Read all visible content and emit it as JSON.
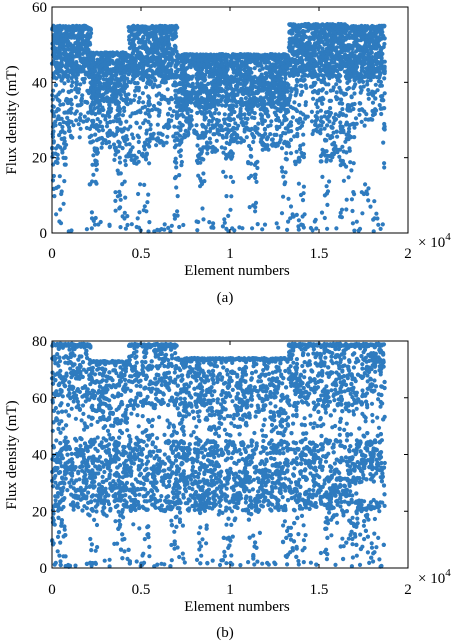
{
  "chart_data": [
    {
      "type": "scatter",
      "caption": "(a)",
      "xlabel": "Element numbers",
      "ylabel": "Flux density (mT)",
      "xlim": [
        0,
        20000
      ],
      "ylim": [
        0,
        60
      ],
      "x_exponent_label": "× 10",
      "x_exponent_power": "4",
      "xtick_values": [
        0,
        5000,
        10000,
        15000,
        20000
      ],
      "xtick_labels": [
        "0",
        "0.5",
        "1",
        "1.5",
        "2"
      ],
      "ytick_values": [
        0,
        20,
        40,
        60
      ],
      "ytick_labels": [
        "0",
        "20",
        "40",
        "60"
      ],
      "marker_color": "#2e7bbf",
      "grid": false,
      "bands": [
        {
          "x": [
            0,
            2200
          ],
          "y_top": 55
        },
        {
          "x": [
            2200,
            4300
          ],
          "y_top": 48
        },
        {
          "x": [
            4300,
            7000
          ],
          "y_top": 55
        },
        {
          "x": [
            7000,
            13300
          ],
          "y_top": 47.5
        },
        {
          "x": [
            13300,
            16500
          ],
          "y_top": 55.5
        },
        {
          "x": [
            16500,
            18700
          ],
          "y_top": 55
        }
      ],
      "gaps": [
        {
          "x": [
            800,
            2000
          ],
          "y": [
            2,
            25
          ]
        },
        {
          "x": [
            2600,
            3500
          ],
          "y": [
            3,
            22
          ]
        },
        {
          "x": [
            4500,
            4800
          ],
          "y": [
            4,
            18
          ]
        },
        {
          "x": [
            5500,
            6800
          ],
          "y": [
            3,
            23
          ]
        },
        {
          "x": [
            7300,
            8100
          ],
          "y": [
            3,
            23
          ]
        },
        {
          "x": [
            8600,
            9600
          ],
          "y": [
            4,
            20
          ]
        },
        {
          "x": [
            10200,
            11000
          ],
          "y": [
            2,
            24
          ]
        },
        {
          "x": [
            11600,
            12900
          ],
          "y": [
            3,
            22
          ]
        },
        {
          "x": [
            14200,
            15100
          ],
          "y": [
            4,
            26
          ]
        },
        {
          "x": [
            15700,
            16200
          ],
          "y": [
            5,
            20
          ]
        },
        {
          "x": [
            17000,
            18600
          ],
          "y": [
            14,
            28
          ]
        }
      ]
    },
    {
      "type": "scatter",
      "caption": "(b)",
      "xlabel": "Element numbers",
      "ylabel": "Flux density (mT)",
      "xlim": [
        0,
        20000
      ],
      "ylim": [
        0,
        80
      ],
      "x_exponent_label": "× 10",
      "x_exponent_power": "4",
      "xtick_values": [
        0,
        5000,
        10000,
        15000,
        20000
      ],
      "xtick_labels": [
        "0",
        "0.5",
        "1",
        "1.5",
        "2"
      ],
      "ytick_values": [
        0,
        20,
        40,
        60,
        80
      ],
      "ytick_labels": [
        "0",
        "20",
        "40",
        "60",
        "80"
      ],
      "marker_color": "#2e7bbf",
      "grid": false,
      "bands": [
        {
          "x": [
            0,
            2200
          ],
          "y_top": 79
        },
        {
          "x": [
            2200,
            4300
          ],
          "y_top": 73
        },
        {
          "x": [
            4300,
            7000
          ],
          "y_top": 79
        },
        {
          "x": [
            7000,
            13300
          ],
          "y_top": 74
        },
        {
          "x": [
            13300,
            16500
          ],
          "y_top": 79
        },
        {
          "x": [
            16500,
            18700
          ],
          "y_top": 79
        }
      ],
      "gaps": [
        {
          "x": [
            800,
            2000
          ],
          "y": [
            2,
            20
          ]
        },
        {
          "x": [
            2600,
            3500
          ],
          "y": [
            3,
            18
          ]
        },
        {
          "x": [
            4500,
            4900
          ],
          "y": [
            3,
            15
          ]
        },
        {
          "x": [
            5600,
            6700
          ],
          "y": [
            2,
            20
          ]
        },
        {
          "x": [
            7400,
            8100
          ],
          "y": [
            2,
            20
          ]
        },
        {
          "x": [
            8700,
            9600
          ],
          "y": [
            3,
            18
          ]
        },
        {
          "x": [
            10300,
            11000
          ],
          "y": [
            2,
            20
          ]
        },
        {
          "x": [
            11700,
            12900
          ],
          "y": [
            2,
            20
          ]
        },
        {
          "x": [
            14300,
            15100
          ],
          "y": [
            3,
            20
          ]
        },
        {
          "x": [
            15800,
            16200
          ],
          "y": [
            3,
            15
          ]
        },
        {
          "x": [
            17100,
            18600
          ],
          "y": [
            24,
            30
          ]
        }
      ]
    }
  ]
}
